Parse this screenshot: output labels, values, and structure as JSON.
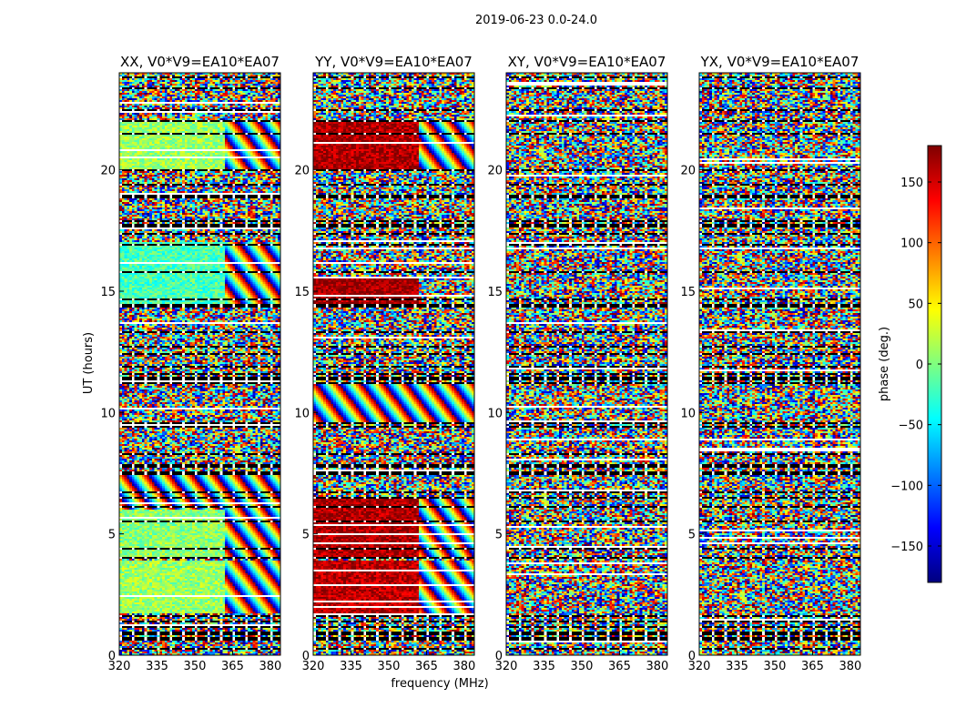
{
  "figure": {
    "suptitle": "2019-06-23 0.0-24.0"
  },
  "chart_data": {
    "type": "heatmap",
    "suptitle": "2019-06-23 0.0-24.0",
    "xlabel": "frequency (MHz)",
    "ylabel": "UT (hours)",
    "xlim": [
      320,
      384
    ],
    "ylim": [
      0,
      24
    ],
    "x_ticks": [
      320,
      335,
      350,
      365,
      380
    ],
    "y_ticks": [
      0,
      5,
      10,
      15,
      20
    ],
    "colorbar": {
      "label": "phase (deg.)",
      "range": [
        -180,
        180
      ],
      "ticks": [
        150,
        100,
        50,
        0,
        -50,
        -100,
        -150
      ],
      "colormap": "jet",
      "colors": [
        "#00007f",
        "#0000ff",
        "#00ffff",
        "#7fff7f",
        "#ffff00",
        "#ff0000",
        "#7f0000"
      ]
    },
    "flagged_time_gaps_hours": [
      [
        0.25,
        0.32
      ],
      [
        0.62,
        0.72
      ],
      [
        0.85,
        0.95
      ],
      [
        1.15,
        1.22
      ],
      [
        1.35,
        1.42
      ],
      [
        1.55,
        1.62
      ],
      [
        3.95,
        4.05
      ],
      [
        4.35,
        4.42
      ],
      [
        5.45,
        5.52
      ],
      [
        6.05,
        6.12
      ],
      [
        6.45,
        6.55
      ],
      [
        6.65,
        6.75
      ],
      [
        7.45,
        7.55
      ],
      [
        7.75,
        7.85
      ],
      [
        8.25,
        8.32
      ],
      [
        9.35,
        9.45
      ],
      [
        9.55,
        9.62
      ],
      [
        11.15,
        11.22
      ],
      [
        11.35,
        11.45
      ],
      [
        11.55,
        11.62
      ],
      [
        11.85,
        11.92
      ],
      [
        12.35,
        12.42
      ],
      [
        12.65,
        12.72
      ],
      [
        13.25,
        13.35
      ],
      [
        14.35,
        14.45
      ],
      [
        14.65,
        14.72
      ],
      [
        15.75,
        15.82
      ],
      [
        16.85,
        16.92
      ],
      [
        17.35,
        17.42
      ],
      [
        17.65,
        17.75
      ],
      [
        17.85,
        17.92
      ],
      [
        18.85,
        18.95
      ],
      [
        19.35,
        19.42
      ],
      [
        19.95,
        20.02
      ],
      [
        21.45,
        21.52
      ],
      [
        21.95,
        22.02
      ],
      [
        22.45,
        22.52
      ],
      [
        23.35,
        23.42
      ],
      [
        23.75,
        23.82
      ]
    ],
    "panels": [
      {
        "title": "XX, V0*V9=EA10*EA07",
        "polarization": "XX",
        "baseline": "V0*V9=EA10*EA07",
        "regions": [
          {
            "t": [
              0.0,
              1.7
            ],
            "f": [
              320,
              384
            ],
            "pattern": "noise",
            "phase": -40
          },
          {
            "t": [
              1.7,
              3.9
            ],
            "f": [
              320,
              362
            ],
            "pattern": "smooth",
            "phase": 10
          },
          {
            "t": [
              1.7,
              3.9
            ],
            "f": [
              362,
              384
            ],
            "pattern": "fringes",
            "phase": 0
          },
          {
            "t": [
              4.0,
              6.0
            ],
            "f": [
              320,
              362
            ],
            "pattern": "smooth",
            "phase": 5
          },
          {
            "t": [
              4.0,
              6.0
            ],
            "f": [
              362,
              384
            ],
            "pattern": "fringes",
            "phase": 0
          },
          {
            "t": [
              6.0,
              7.5
            ],
            "f": [
              320,
              384
            ],
            "pattern": "fringes",
            "phase": 0
          },
          {
            "t": [
              7.5,
              14.4
            ],
            "f": [
              320,
              384
            ],
            "pattern": "noise",
            "phase": 0
          },
          {
            "t": [
              14.4,
              17.0
            ],
            "f": [
              320,
              362
            ],
            "pattern": "smooth",
            "phase": -20
          },
          {
            "t": [
              14.4,
              17.0
            ],
            "f": [
              362,
              384
            ],
            "pattern": "fringes",
            "phase": 0
          },
          {
            "t": [
              17.0,
              20.0
            ],
            "f": [
              320,
              384
            ],
            "pattern": "noise",
            "phase": 0
          },
          {
            "t": [
              20.0,
              22.0
            ],
            "f": [
              320,
              362
            ],
            "pattern": "smooth",
            "phase": 10
          },
          {
            "t": [
              20.0,
              22.0
            ],
            "f": [
              362,
              384
            ],
            "pattern": "fringes",
            "phase": 0
          },
          {
            "t": [
              22.0,
              24.0
            ],
            "f": [
              320,
              384
            ],
            "pattern": "noise",
            "phase": 0
          }
        ]
      },
      {
        "title": "YY, V0*V9=EA10*EA07",
        "polarization": "YY",
        "baseline": "V0*V9=EA10*EA07",
        "regions": [
          {
            "t": [
              0.0,
              1.7
            ],
            "f": [
              320,
              384
            ],
            "pattern": "noise",
            "phase": 0
          },
          {
            "t": [
              1.7,
              3.9
            ],
            "f": [
              320,
              362
            ],
            "pattern": "smooth",
            "phase": 160
          },
          {
            "t": [
              1.7,
              3.9
            ],
            "f": [
              362,
              384
            ],
            "pattern": "fringes",
            "phase": 0
          },
          {
            "t": [
              4.0,
              6.5
            ],
            "f": [
              320,
              362
            ],
            "pattern": "smooth",
            "phase": 165
          },
          {
            "t": [
              4.0,
              6.5
            ],
            "f": [
              362,
              384
            ],
            "pattern": "fringes",
            "phase": 0
          },
          {
            "t": [
              6.5,
              9.5
            ],
            "f": [
              320,
              384
            ],
            "pattern": "noise",
            "phase": 0
          },
          {
            "t": [
              9.5,
              11.2
            ],
            "f": [
              320,
              384
            ],
            "pattern": "fringes",
            "phase": 0
          },
          {
            "t": [
              11.2,
              14.4
            ],
            "f": [
              320,
              384
            ],
            "pattern": "noise",
            "phase": 0
          },
          {
            "t": [
              14.4,
              15.5
            ],
            "f": [
              320,
              362
            ],
            "pattern": "smooth",
            "phase": 170
          },
          {
            "t": [
              15.5,
              17.0
            ],
            "f": [
              320,
              384
            ],
            "pattern": "noise",
            "phase": 0
          },
          {
            "t": [
              17.0,
              20.0
            ],
            "f": [
              320,
              384
            ],
            "pattern": "noise",
            "phase": 0
          },
          {
            "t": [
              20.0,
              22.0
            ],
            "f": [
              320,
              362
            ],
            "pattern": "smooth",
            "phase": 165
          },
          {
            "t": [
              20.0,
              22.0
            ],
            "f": [
              362,
              384
            ],
            "pattern": "fringes",
            "phase": 0
          },
          {
            "t": [
              22.0,
              24.0
            ],
            "f": [
              320,
              384
            ],
            "pattern": "noise",
            "phase": 0
          }
        ]
      },
      {
        "title": "XY, V0*V9=EA10*EA07",
        "polarization": "XY",
        "baseline": "V0*V9=EA10*EA07",
        "regions": [
          {
            "t": [
              0.0,
              24.0
            ],
            "f": [
              320,
              384
            ],
            "pattern": "noise",
            "phase": 0
          }
        ]
      },
      {
        "title": "YX, V0*V9=EA10*EA07",
        "polarization": "YX",
        "baseline": "V0*V9=EA10*EA07",
        "regions": [
          {
            "t": [
              0.0,
              24.0
            ],
            "f": [
              320,
              384
            ],
            "pattern": "noise",
            "phase": 0
          }
        ]
      }
    ]
  }
}
